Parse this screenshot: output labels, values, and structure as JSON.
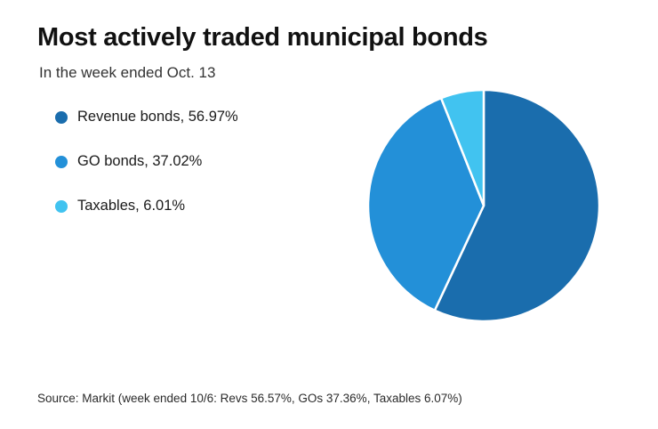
{
  "header": {
    "title": "Most actively traded municipal bonds",
    "subtitle": "In the week ended Oct. 13"
  },
  "source_note": "Source: Markit (week ended 10/6: Revs 56.57%, GOs 37.36%, Taxables 6.07%)",
  "chart_data": {
    "type": "pie",
    "title": "Most actively traded municipal bonds",
    "subtitle": "In the week ended Oct. 13",
    "legend_position": "left",
    "start_angle_deg": -90,
    "direction": "clockwise",
    "slice_gap_color": "#ffffff",
    "slices": [
      {
        "name": "Revenue bonds",
        "value": 56.97,
        "label": "Revenue bonds, 56.97%",
        "color": "#1a6dad"
      },
      {
        "name": "GO bonds",
        "value": 37.02,
        "label": "GO bonds, 37.02%",
        "color": "#2390d8"
      },
      {
        "name": "Taxables",
        "value": 6.01,
        "label": "Taxables, 6.01%",
        "color": "#41c3f0"
      }
    ]
  }
}
